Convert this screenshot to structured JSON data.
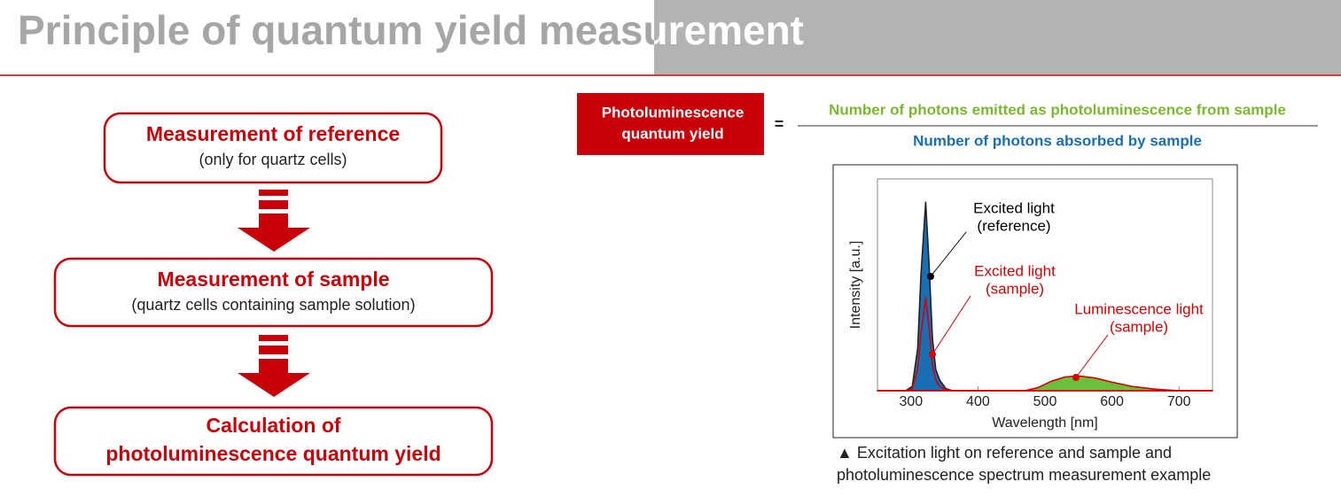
{
  "header": {
    "title": "Principle of quantum yield measurement"
  },
  "flow": {
    "steps": [
      {
        "title_lines": [
          "Measurement of reference"
        ],
        "subtitle": "(only for quartz cells)"
      },
      {
        "title_lines": [
          "Measurement of sample"
        ],
        "subtitle": "(quartz cells containing sample solution)"
      },
      {
        "title_lines": [
          "Calculation of",
          "photoluminescence quantum yield"
        ]
      }
    ]
  },
  "formula": {
    "term_lines": [
      "Photoluminescence",
      "quantum yield"
    ],
    "equals": "=",
    "numerator": "Number of photons emitted as photoluminescence from sample",
    "denominator": "Number of photons absorbed by sample"
  },
  "chart_data": {
    "type": "line",
    "xlabel": "Wavelength [nm]",
    "ylabel": "Intensity [a.u.]",
    "xlim": [
      250,
      750
    ],
    "xticks": [
      300,
      400,
      500,
      600,
      700
    ],
    "ylim": [
      0,
      100
    ],
    "series": [
      {
        "name": "Excited light (reference)",
        "color": "#1a6eb4",
        "outline": "#222222",
        "fill": true,
        "x": [
          250,
          292,
          302,
          310,
          315,
          322,
          327,
          332,
          337,
          343,
          352,
          362,
          750
        ],
        "values": [
          0,
          0,
          2,
          20,
          55,
          89,
          60,
          25,
          10,
          5,
          1,
          0,
          0
        ]
      },
      {
        "name": "Excited light (sample)",
        "color": "#d40000",
        "outline": "#d40000",
        "fill": false,
        "x": [
          250,
          292,
          302,
          310,
          315,
          322,
          327,
          332,
          337,
          343,
          352,
          362,
          750
        ],
        "values": [
          0,
          0,
          1,
          10,
          27,
          44,
          30,
          12,
          5,
          2,
          0.5,
          0,
          0
        ]
      },
      {
        "name": "Luminescence light (sample)",
        "color": "#6cbf3a",
        "outline": "#d40000",
        "fill": true,
        "x": [
          250,
          470,
          490,
          510,
          530,
          550,
          575,
          600,
          630,
          665,
          700,
          750
        ],
        "values": [
          0,
          0,
          1.5,
          4.5,
          6.5,
          7,
          6,
          4,
          2,
          0.7,
          0,
          0
        ]
      }
    ],
    "annotations": [
      {
        "lines": [
          "Excited light",
          "(reference)"
        ],
        "color": "#000000"
      },
      {
        "lines": [
          "Excited light",
          "(sample)"
        ],
        "color": "#d40000"
      },
      {
        "lines": [
          "Luminescence light",
          "(sample)"
        ],
        "color": "#d40000"
      }
    ]
  },
  "caption": {
    "lines": [
      "▲ Excitation light on reference and sample and",
      "photoluminescence spectrum measurement example"
    ]
  }
}
